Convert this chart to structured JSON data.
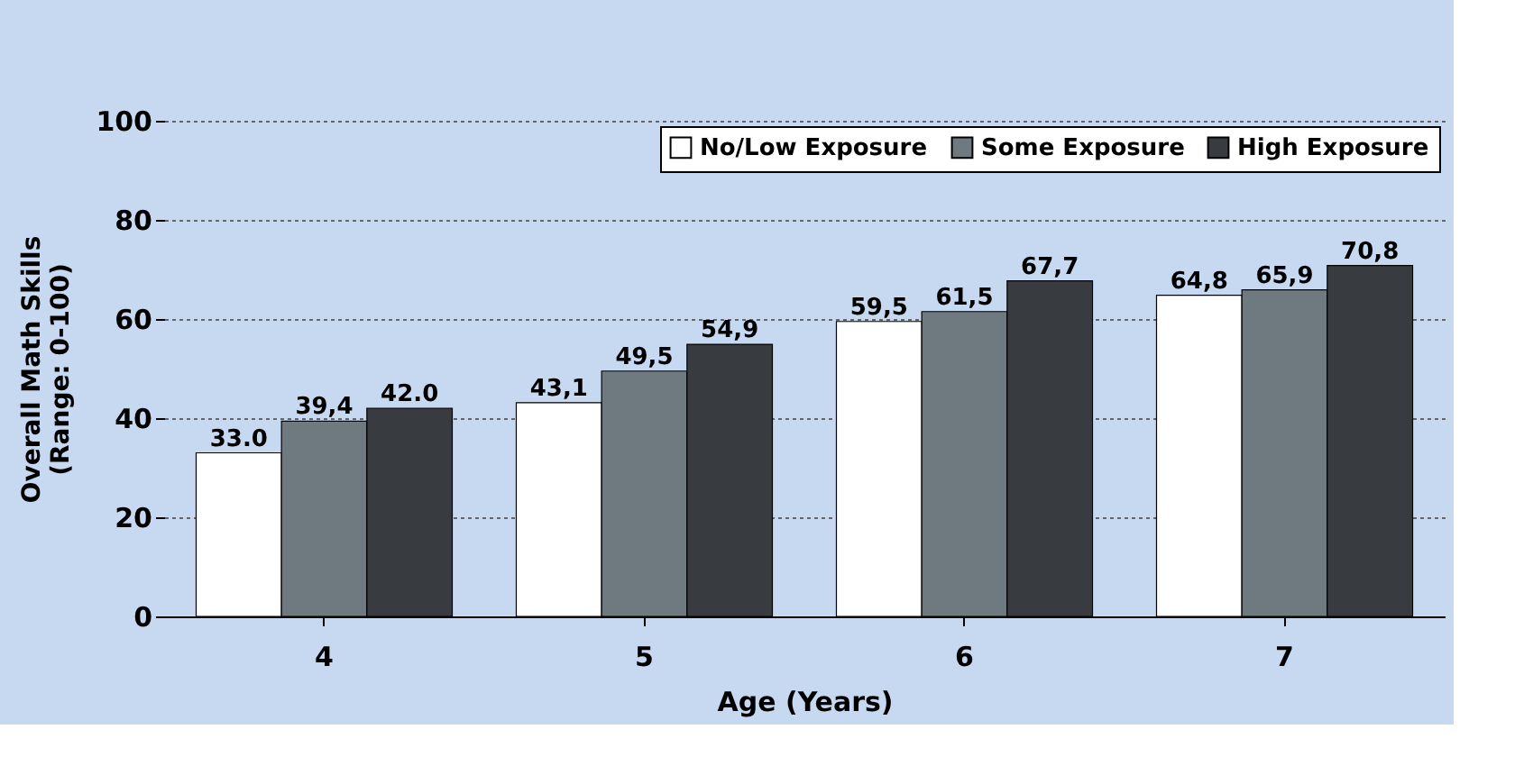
{
  "chart_data": {
    "type": "bar",
    "xlabel": "Age (Years)",
    "ylabel": "Overall Math Skills\n(Range: 0-100)",
    "categories": [
      "4",
      "5",
      "6",
      "7"
    ],
    "series": [
      {
        "name": "No/Low Exposure",
        "color": "#ffffff",
        "values": [
          33.0,
          43.1,
          59.5,
          64.8
        ],
        "value_labels": [
          "33.0",
          "43,1",
          "59,5",
          "64,8"
        ]
      },
      {
        "name": "Some Exposure",
        "color": "#6e7a7f",
        "values": [
          39.4,
          49.5,
          61.5,
          65.9
        ],
        "value_labels": [
          "39,4",
          "49,5",
          "61,5",
          "65,9"
        ]
      },
      {
        "name": "High Exposure",
        "color": "#383c41",
        "values": [
          42.0,
          54.9,
          67.7,
          70.8
        ],
        "value_labels": [
          "42.0",
          "54,9",
          "67,7",
          "70,8"
        ]
      }
    ],
    "ylim": [
      0,
      100
    ],
    "yticks": [
      0,
      20,
      40,
      60,
      80,
      100
    ],
    "grid": "y",
    "legend": "top right"
  }
}
